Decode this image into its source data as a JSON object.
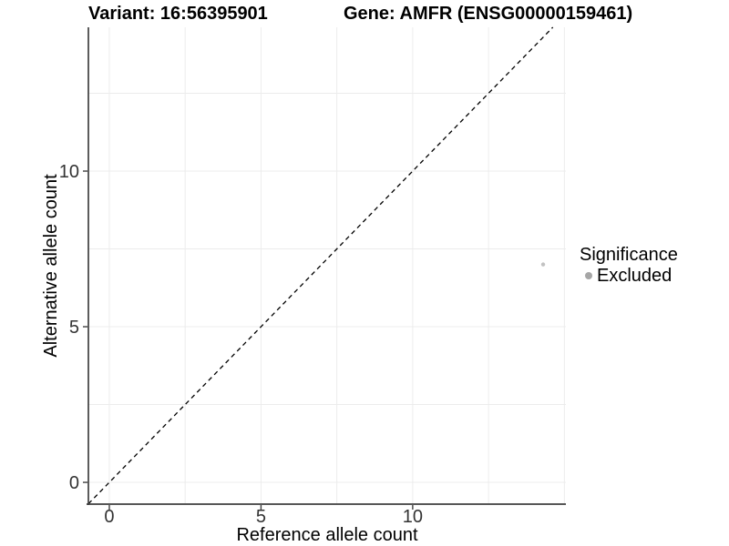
{
  "header": {
    "title_left": "Variant: 16:56395901",
    "title_right": "Gene: AMFR (ENSG00000159461)"
  },
  "chart_data": {
    "type": "scatter",
    "title_left": "Variant: 16:56395901",
    "title_right": "Gene: AMFR (ENSG00000159461)",
    "xlabel": "Reference allele count",
    "ylabel": "Alternative allele count",
    "xlim": [
      -0.69,
      15.05
    ],
    "ylim": [
      -0.7,
      14.62
    ],
    "x_ticks": [
      0,
      5,
      10
    ],
    "y_ticks": [
      0,
      5,
      10
    ],
    "gridlines": {
      "x": [
        0,
        2.5,
        5,
        7.5,
        10,
        12.5,
        15
      ],
      "y": [
        0,
        2.5,
        5,
        7.5,
        10,
        12.5
      ]
    },
    "grid": "on",
    "identity_line": {
      "slope": 1,
      "intercept": 0,
      "style": "dashed"
    },
    "series": [
      {
        "name": "Excluded",
        "points": [
          {
            "x": 14.3,
            "y": 7
          }
        ],
        "point_color": "#c2c2c2",
        "point_radius": 2.2
      }
    ],
    "legend": {
      "title": "Significance",
      "position": "right",
      "items": [
        {
          "label": "Excluded",
          "color": "#a6a6a6"
        }
      ]
    },
    "colors": {
      "background": "#ffffff",
      "gridline": "#ececec",
      "axis_line": "#3f3f3f",
      "tick_label": "#333333",
      "axis_title": "#000000",
      "identity_line": "#000000"
    }
  }
}
